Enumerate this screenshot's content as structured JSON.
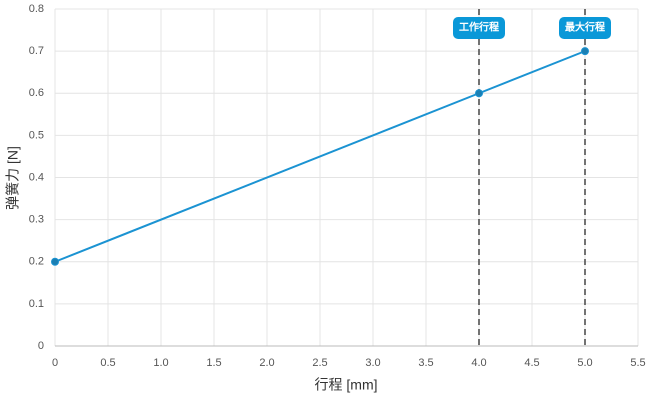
{
  "chart_data": {
    "type": "line",
    "x_label": "行程 [mm]",
    "y_label": "弹簧力 [N]",
    "x": [
      0,
      4,
      5
    ],
    "series": [
      {
        "color": "#1b93d2",
        "values": [
          0.2,
          0.6,
          0.7
        ]
      }
    ],
    "xlim": [
      0,
      5.5
    ],
    "xticks": [
      0,
      0.5,
      {
        "value": 1,
        "label": "1.0"
      },
      1.5,
      {
        "value": 2,
        "label": "2.0"
      },
      2.5,
      {
        "value": 3,
        "label": "3.0"
      },
      3.5,
      {
        "value": 4,
        "label": "4.0"
      },
      4.5,
      {
        "value": 5,
        "label": "5.0"
      },
      5.5
    ],
    "ylim": [
      0,
      0.8
    ],
    "yticks": [
      0,
      0.1,
      0.2,
      0.3,
      0.4,
      0.5,
      0.6,
      0.7,
      0.8
    ],
    "grid": true,
    "annotations": [
      {
        "x": 4,
        "label": "工作行程"
      },
      {
        "x": 5,
        "label": "最大行程"
      }
    ]
  }
}
